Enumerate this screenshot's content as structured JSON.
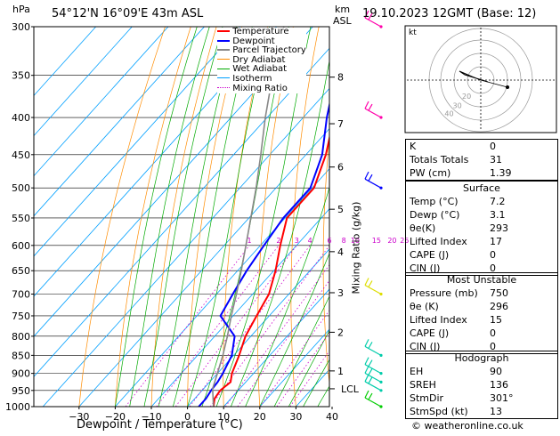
{
  "header": {
    "hpa_label": "hPa",
    "location": "54°12'N 16°09'E 43m ASL",
    "km_label": "km",
    "asl_label": "ASL",
    "datetime": "19.10.2023 12GMT (Base: 12)"
  },
  "legend": [
    {
      "label": "Temperature",
      "color": "#ff0000"
    },
    {
      "label": "Dewpoint",
      "color": "#0000ff"
    },
    {
      "label": "Parcel Trajectory",
      "color": "#888888"
    },
    {
      "label": "Dry Adiabat",
      "color": "#ff8c00"
    },
    {
      "label": "Wet Adiabat",
      "color": "#00aa00"
    },
    {
      "label": "Isotherm",
      "color": "#00a0ff"
    },
    {
      "label": "Mixing Ratio",
      "color": "#cc00cc"
    }
  ],
  "chart_data": {
    "type": "line",
    "subtype": "skew-t log-p",
    "xlabel": "Dewpoint / Temperature (°C)",
    "ylabel_right": "Mixing Ratio (g/kg)",
    "x_ticks": [
      -30,
      -20,
      -10,
      0,
      10,
      20,
      30,
      40
    ],
    "xlim": [
      -40,
      40
    ],
    "pressure_ticks": [
      300,
      350,
      400,
      450,
      500,
      550,
      600,
      650,
      700,
      750,
      800,
      850,
      900,
      950,
      1000
    ],
    "ylim_hpa": [
      1000,
      300
    ],
    "y_log": true,
    "km_ticks": [
      {
        "label": "8",
        "p": 352
      },
      {
        "label": "7",
        "p": 408
      },
      {
        "label": "6",
        "p": 468
      },
      {
        "label": "5",
        "p": 535
      },
      {
        "label": "4",
        "p": 612
      },
      {
        "label": "3",
        "p": 697
      },
      {
        "label": "2",
        "p": 790
      },
      {
        "label": "1",
        "p": 893
      }
    ],
    "lcl_label": "LCL",
    "lcl_p": 945,
    "mixing_ratio_labels": [
      {
        "label": "1",
        "value": 1
      },
      {
        "label": "2",
        "value": 2
      },
      {
        "label": "3",
        "value": 3
      },
      {
        "label": "4",
        "value": 4
      },
      {
        "label": "6",
        "value": 6
      },
      {
        "label": "8",
        "value": 8
      },
      {
        "label": "10",
        "value": 10
      },
      {
        "label": "15",
        "value": 15
      },
      {
        "label": "20",
        "value": 20
      },
      {
        "label": "25",
        "value": 25
      }
    ],
    "series": [
      {
        "name": "Temperature",
        "color": "#ff0000",
        "points": [
          [
            1000,
            7.2
          ],
          [
            975,
            5.5
          ],
          [
            950,
            5.0
          ],
          [
            925,
            5.8
          ],
          [
            900,
            4.0
          ],
          [
            850,
            1.5
          ],
          [
            800,
            -1.5
          ],
          [
            750,
            -3.5
          ],
          [
            700,
            -5.5
          ],
          [
            650,
            -9.5
          ],
          [
            600,
            -14.5
          ],
          [
            550,
            -19.5
          ],
          [
            500,
            -19.5
          ],
          [
            450,
            -24.5
          ],
          [
            400,
            -31.5
          ],
          [
            350,
            -39.5
          ],
          [
            300,
            -48.5
          ]
        ]
      },
      {
        "name": "Dewpoint",
        "color": "#0000ff",
        "points": [
          [
            1000,
            3.1
          ],
          [
            975,
            3.1
          ],
          [
            950,
            2.5
          ],
          [
            925,
            2.2
          ],
          [
            900,
            1.5
          ],
          [
            850,
            -0.5
          ],
          [
            800,
            -4.5
          ],
          [
            750,
            -13.5
          ],
          [
            700,
            -15.5
          ],
          [
            650,
            -17.5
          ],
          [
            600,
            -19.0
          ],
          [
            550,
            -20.5
          ],
          [
            500,
            -20.5
          ],
          [
            450,
            -25.5
          ],
          [
            400,
            -33.5
          ],
          [
            350,
            -41.5
          ],
          [
            300,
            -50.5
          ]
        ]
      },
      {
        "name": "Parcel Trajectory",
        "color": "#888888",
        "points": [
          [
            1000,
            7.2
          ],
          [
            945,
            2.5
          ],
          [
            900,
            0.0
          ],
          [
            850,
            -3.0
          ],
          [
            800,
            -6.5
          ],
          [
            750,
            -10.5
          ],
          [
            700,
            -14.5
          ],
          [
            650,
            -19.0
          ],
          [
            600,
            -24.0
          ],
          [
            550,
            -29.5
          ],
          [
            500,
            -35.5
          ],
          [
            450,
            -42.5
          ],
          [
            400,
            -50.5
          ],
          [
            350,
            -59.0
          ],
          [
            300,
            -68.0
          ]
        ]
      }
    ],
    "winds": [
      {
        "p": 300,
        "color": "#ff00aa"
      },
      {
        "p": 400,
        "color": "#ff00aa"
      },
      {
        "p": 500,
        "color": "#0000ff"
      },
      {
        "p": 700,
        "color": "#dddd00"
      },
      {
        "p": 850,
        "color": "#00ccaa"
      },
      {
        "p": 900,
        "color": "#00ccaa"
      },
      {
        "p": 925,
        "color": "#00ccaa"
      },
      {
        "p": 950,
        "color": "#00ccaa"
      },
      {
        "p": 1000,
        "color": "#00cc00"
      }
    ]
  },
  "hodograph": {
    "label": "kt",
    "ring_labels": [
      "20",
      "30",
      "40"
    ]
  },
  "indices": [
    {
      "label": "K",
      "value": "0"
    },
    {
      "label": "Totals Totals",
      "value": "31"
    },
    {
      "label": "PW (cm)",
      "value": "1.39"
    }
  ],
  "surface": {
    "title": "Surface",
    "rows": [
      {
        "label": "Temp (°C)",
        "value": "7.2"
      },
      {
        "label": "Dewp (°C)",
        "value": "3.1"
      },
      {
        "label": "θe(K)",
        "value": "293"
      },
      {
        "label": "Lifted Index",
        "value": "17"
      },
      {
        "label": "CAPE (J)",
        "value": "0"
      },
      {
        "label": "CIN (J)",
        "value": "0"
      }
    ]
  },
  "most_unstable": {
    "title": "Most Unstable",
    "rows": [
      {
        "label": "Pressure (mb)",
        "value": "750"
      },
      {
        "label": "θe (K)",
        "value": "296"
      },
      {
        "label": "Lifted Index",
        "value": "15"
      },
      {
        "label": "CAPE (J)",
        "value": "0"
      },
      {
        "label": "CIN (J)",
        "value": "0"
      }
    ]
  },
  "hodograph_table": {
    "title": "Hodograph",
    "rows": [
      {
        "label": "EH",
        "value": "90"
      },
      {
        "label": "SREH",
        "value": "136"
      },
      {
        "label": "StmDir",
        "value": "301°"
      },
      {
        "label": "StmSpd (kt)",
        "value": "13"
      }
    ]
  },
  "footer": {
    "copyright": "© weatheronline.co.uk"
  }
}
